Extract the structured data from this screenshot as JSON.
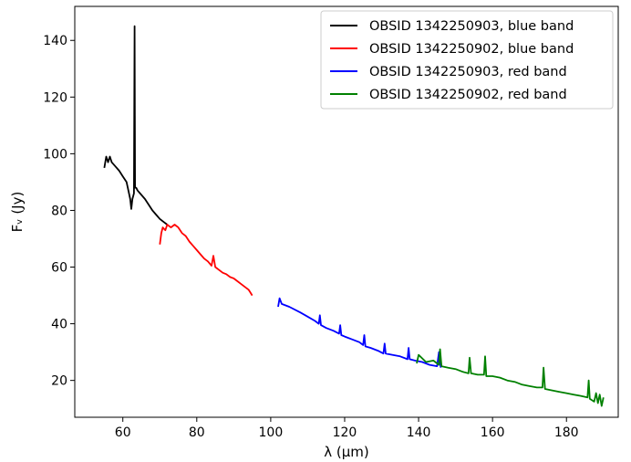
{
  "chart_data": {
    "type": "line",
    "xlabel": "λ (μm)",
    "ylabel": "Fᵥ  (Jy)",
    "xlim": [
      47,
      194
    ],
    "ylim": [
      7,
      152
    ],
    "x_ticks": [
      60,
      80,
      100,
      120,
      140,
      160,
      180
    ],
    "y_ticks": [
      20,
      40,
      60,
      80,
      100,
      120,
      140
    ],
    "grid": false,
    "legend_position": "top-right",
    "series": [
      {
        "name": "OBSID 1342250903, blue band",
        "color": "#000000",
        "x": [
          55.0,
          55.5,
          56.0,
          56.5,
          57.0,
          58.0,
          59.0,
          60.0,
          61.0,
          61.5,
          62.0,
          62.3,
          62.6,
          63.0,
          63.18,
          63.3,
          63.6,
          64.0,
          65.0,
          66.0,
          67.0,
          68.0,
          69.0,
          70.0,
          71.0,
          72.0
        ],
        "y": [
          95.0,
          99.0,
          97.0,
          99.0,
          97.0,
          95.5,
          94.0,
          92.0,
          90.0,
          87.0,
          84.0,
          80.5,
          84.0,
          86.0,
          145.0,
          88.0,
          88.0,
          87.0,
          85.5,
          84.0,
          82.0,
          80.0,
          78.5,
          77.0,
          76.0,
          75.0
        ]
      },
      {
        "name": "OBSID 1342250902, blue band",
        "color": "#ff0000",
        "x": [
          70.0,
          70.4,
          70.8,
          71.5,
          72.0,
          73.0,
          74.0,
          75.0,
          76.0,
          77.0,
          78.0,
          79.0,
          80.0,
          81.0,
          82.0,
          83.0,
          84.0,
          84.5,
          85.0,
          86.0,
          87.0,
          88.0,
          89.0,
          90.0,
          91.0,
          92.0,
          93.0,
          94.0,
          94.5,
          95.0
        ],
        "y": [
          68.0,
          72.0,
          74.0,
          73.0,
          75.0,
          74.0,
          75.0,
          74.0,
          72.0,
          71.0,
          69.0,
          67.5,
          66.0,
          64.5,
          63.0,
          62.0,
          60.5,
          64.0,
          60.0,
          59.0,
          58.0,
          57.5,
          56.5,
          56.0,
          55.0,
          54.0,
          53.0,
          52.0,
          51.0,
          50.0
        ]
      },
      {
        "name": "OBSID 1342250903, red band",
        "color": "#0000ff",
        "x": [
          102.0,
          102.4,
          103.0,
          105.0,
          108.0,
          110.0,
          112.0,
          113.0,
          113.3,
          113.6,
          115.0,
          117.0,
          118.5,
          118.8,
          119.1,
          120.0,
          122.0,
          124.0,
          125.0,
          125.3,
          125.6,
          127.0,
          129.0,
          130.5,
          130.8,
          131.1,
          133.0,
          135.0,
          137.0,
          137.3,
          137.6,
          139.0,
          141.0,
          143.0,
          145.0,
          145.5,
          146.0
        ],
        "y": [
          46.0,
          49.0,
          47.0,
          46.0,
          44.0,
          42.5,
          41.0,
          40.0,
          43.0,
          39.5,
          38.5,
          37.5,
          36.5,
          39.5,
          36.0,
          35.5,
          34.5,
          33.5,
          32.5,
          36.0,
          32.0,
          31.5,
          30.5,
          29.5,
          33.0,
          29.5,
          29.0,
          28.5,
          27.5,
          31.5,
          27.5,
          27.0,
          26.5,
          25.5,
          25.0,
          30.0,
          24.5
        ]
      },
      {
        "name": "OBSID 1342250902, red band",
        "color": "#008000",
        "x": [
          139.5,
          140.0,
          142.0,
          144.0,
          145.5,
          145.8,
          146.2,
          148.0,
          150.0,
          152.0,
          153.5,
          153.8,
          154.2,
          156.0,
          157.7,
          158.0,
          158.3,
          160.0,
          162.0,
          164.0,
          166.0,
          168.0,
          170.0,
          172.0,
          173.5,
          173.8,
          174.2,
          176.0,
          178.0,
          180.0,
          182.0,
          184.0,
          185.7,
          186.0,
          186.3,
          187.5,
          188.0,
          188.5,
          189.0,
          189.5,
          190.0
        ],
        "y": [
          26.0,
          29.0,
          26.5,
          27.0,
          25.5,
          31.0,
          25.0,
          24.5,
          24.0,
          23.0,
          22.5,
          28.0,
          22.5,
          22.0,
          22.0,
          28.5,
          21.5,
          21.5,
          21.0,
          20.0,
          19.5,
          18.5,
          18.0,
          17.5,
          17.5,
          24.5,
          17.0,
          16.5,
          16.0,
          15.5,
          15.0,
          14.5,
          14.0,
          20.0,
          13.5,
          12.5,
          15.5,
          12.0,
          15.0,
          11.0,
          14.0
        ]
      }
    ]
  }
}
